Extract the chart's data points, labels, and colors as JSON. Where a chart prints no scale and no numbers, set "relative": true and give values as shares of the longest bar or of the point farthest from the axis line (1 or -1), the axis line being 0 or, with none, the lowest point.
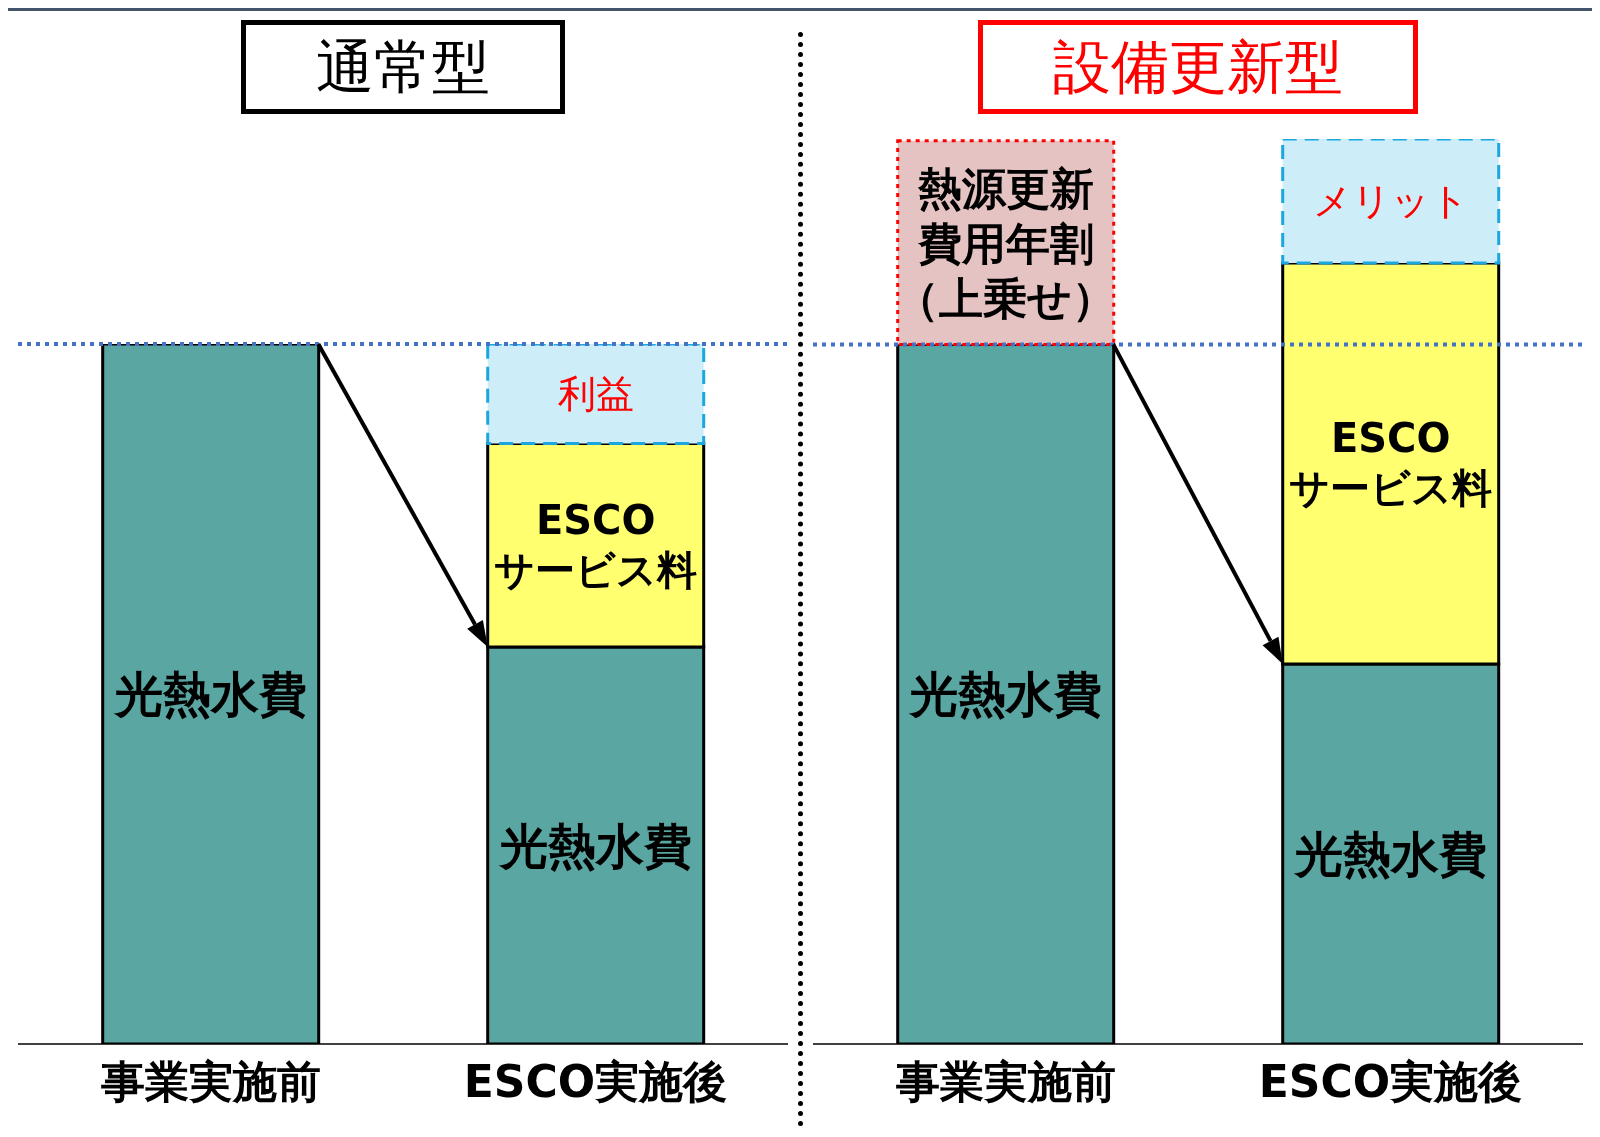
{
  "chart_data": [
    {
      "type": "bar",
      "title": "通常型",
      "stacked": true,
      "relative": true,
      "categories": [
        "事業実施前",
        "ESCO実施後"
      ],
      "series": [
        {
          "name": "光熱水費",
          "color": "#5aa6a2",
          "values": [
            1,
            0.567
          ]
        },
        {
          "name": "ESCOサービス料",
          "color": "#ffff70",
          "values": [
            null,
            0.291
          ]
        },
        {
          "name": "利益",
          "color": "#cdeef8",
          "values": [
            null,
            0.142
          ],
          "line_style": "dashed"
        }
      ],
      "ref_lines": [
        {
          "axis": "y",
          "value": 1,
          "color": "#4472c4",
          "line_style": "dotted"
        }
      ]
    },
    {
      "type": "bar",
      "title": "設備更新型",
      "stacked": true,
      "relative": true,
      "categories": [
        "事業実施前",
        "ESCO実施後"
      ],
      "series": [
        {
          "name": "光熱水費",
          "color": "#5aa6a2",
          "values": [
            0.773,
            0.42
          ]
        },
        {
          "name": "熱源更新費用年割（上乗せ）",
          "color": "#e6c3c3",
          "values": [
            0.225,
            null
          ],
          "line_style": "dotted"
        },
        {
          "name": "ESCOサービス料",
          "color": "#ffff70",
          "values": [
            null,
            0.443
          ]
        },
        {
          "name": "メリット",
          "color": "#cdeef8",
          "values": [
            null,
            0.137
          ],
          "line_style": "dashed"
        }
      ],
      "ref_lines": [
        {
          "axis": "y",
          "value": 0.773,
          "color": "#4472c4",
          "line_style": "dotted"
        }
      ]
    }
  ]
}
